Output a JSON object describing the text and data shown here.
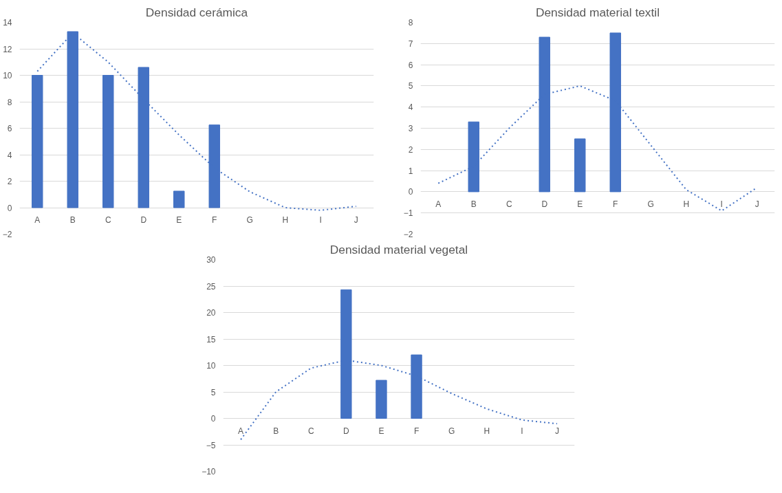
{
  "chart_data": [
    {
      "type": "bar",
      "title": "Densidad cerámica",
      "categories": [
        "A",
        "B",
        "C",
        "D",
        "E",
        "F",
        "G",
        "H",
        "I",
        "J"
      ],
      "ylim": [
        -2,
        14
      ],
      "yticks": [
        -2,
        0,
        2,
        4,
        6,
        8,
        10,
        12,
        14
      ],
      "grid": "y",
      "series": [
        {
          "color": "#4472c4",
          "values": [
            10,
            13.3,
            10,
            10.6,
            1.25,
            6.25,
            null,
            null,
            null,
            null
          ]
        },
        {
          "type": "line",
          "color": "#4472c4",
          "line_style": "dotted",
          "values": [
            10.3,
            13.2,
            11,
            8.2,
            5.5,
            3.0,
            1.2,
            0,
            -0.2,
            0.1
          ]
        }
      ]
    },
    {
      "type": "bar",
      "title": "Densidad material textil",
      "categories": [
        "A",
        "B",
        "C",
        "D",
        "E",
        "F",
        "G",
        "H",
        "I",
        "J"
      ],
      "ylim": [
        -2,
        8
      ],
      "yticks": [
        -2,
        -1,
        0,
        1,
        2,
        3,
        4,
        5,
        6,
        7,
        8
      ],
      "grid": "y",
      "series": [
        {
          "color": "#4472c4",
          "values": [
            null,
            3.3,
            null,
            7.3,
            2.5,
            7.5,
            null,
            null,
            null,
            null
          ]
        },
        {
          "type": "line",
          "color": "#4472c4",
          "line_style": "dotted",
          "values": [
            0.4,
            1.2,
            3.0,
            4.6,
            5.0,
            4.3,
            2.2,
            0.1,
            -0.9,
            0.2
          ]
        }
      ]
    },
    {
      "type": "bar",
      "title": "Densidad material vegetal",
      "categories": [
        "A",
        "B",
        "C",
        "D",
        "E",
        "F",
        "G",
        "H",
        "I",
        "J"
      ],
      "ylim": [
        -10,
        30
      ],
      "yticks": [
        -10,
        -5,
        0,
        5,
        10,
        15,
        20,
        25,
        30
      ],
      "grid": "y",
      "series": [
        {
          "color": "#4472c4",
          "values": [
            null,
            null,
            null,
            24.3,
            7.2,
            12.0,
            null,
            null,
            null,
            null
          ]
        },
        {
          "type": "line",
          "color": "#4472c4",
          "line_style": "dotted",
          "values": [
            -4,
            5,
            9.5,
            11,
            10,
            8,
            4.7,
            1.8,
            -0.3,
            -1
          ]
        }
      ]
    }
  ]
}
